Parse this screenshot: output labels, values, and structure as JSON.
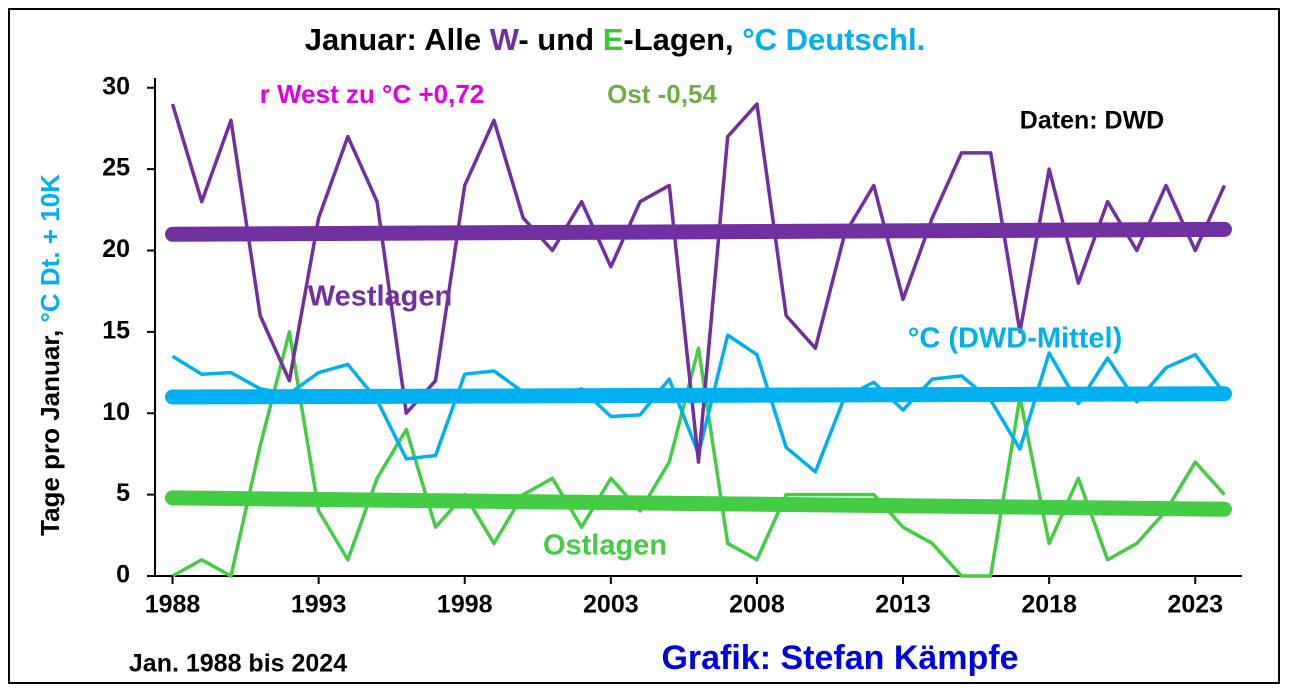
{
  "chart_data": {
    "type": "line",
    "title_parts": [
      {
        "text": "Januar: Alle ",
        "color": "#000000"
      },
      {
        "text": "W",
        "color": "#7030a0"
      },
      {
        "text": "- und ",
        "color": "#000000"
      },
      {
        "text": "E",
        "color": "#33cc33"
      },
      {
        "text": "-Lagen, ",
        "color": "#000000"
      },
      {
        "text": "°C Deutschl.",
        "color": "#00b0f0"
      }
    ],
    "ylabel_parts": [
      {
        "text": "Tage pro Januar, ",
        "color": "#000000"
      },
      {
        "text": "°C Dt. + 10K",
        "color": "#00b0f0"
      }
    ],
    "annotations": [
      {
        "text": "r West zu °C +0,72",
        "color": "#e000e0"
      },
      {
        "text": "Ost -0,54",
        "color": "#70ad47"
      },
      {
        "text": "Daten: DWD",
        "color": "#000000"
      },
      {
        "text": "Jan. 1988 bis 2024",
        "color": "#000000"
      },
      {
        "text": "Grafik: Stefan Kämpfe",
        "color": "#0000e0"
      }
    ],
    "x": [
      1988,
      1989,
      1990,
      1991,
      1992,
      1993,
      1994,
      1995,
      1996,
      1997,
      1998,
      1999,
      2000,
      2001,
      2002,
      2003,
      2004,
      2005,
      2006,
      2007,
      2008,
      2009,
      2010,
      2011,
      2012,
      2013,
      2014,
      2015,
      2016,
      2017,
      2018,
      2019,
      2020,
      2021,
      2022,
      2023,
      2024
    ],
    "series": [
      {
        "name": "Westlagen",
        "color": "#7030a0",
        "values": [
          29,
          23,
          28,
          16,
          12,
          22,
          27,
          23,
          10,
          12,
          24,
          28,
          22,
          20,
          23,
          19,
          23,
          24,
          7,
          27,
          29,
          16,
          14,
          21,
          24,
          17,
          22,
          26,
          26,
          15,
          25,
          18,
          23,
          20,
          24,
          20,
          24
        ],
        "trend": [
          21.0,
          21.3
        ]
      },
      {
        "name": "°C (DWD-Mittel)",
        "color": "#00b0f0",
        "values": [
          13.5,
          12.4,
          12.5,
          11.5,
          11.2,
          12.5,
          13.0,
          10.8,
          7.2,
          7.4,
          12.4,
          12.6,
          11.3,
          11.0,
          11.5,
          9.8,
          9.9,
          12.1,
          7.5,
          14.8,
          13.6,
          7.9,
          6.4,
          11.0,
          11.9,
          10.2,
          12.1,
          12.3,
          10.8,
          7.8,
          13.7,
          10.6,
          13.4,
          10.7,
          12.8,
          13.6,
          11.2
        ],
        "trend": [
          11.0,
          11.2
        ]
      },
      {
        "name": "Ostlagen",
        "color": "#44cc44",
        "values": [
          0,
          1,
          0,
          8,
          15,
          4,
          1,
          6,
          9,
          3,
          5,
          2,
          5,
          6,
          3,
          6,
          4,
          7,
          14,
          2,
          1,
          5,
          5,
          5,
          5,
          3,
          2,
          0,
          0,
          11,
          2,
          6,
          1,
          2,
          4,
          7,
          5
        ],
        "trend": [
          4.8,
          4.1
        ]
      }
    ],
    "xlim": [
      1987.4,
      2024.6
    ],
    "ylim": [
      0,
      30.6
    ],
    "xticks": [
      1988,
      1993,
      1998,
      2003,
      2008,
      2013,
      2018,
      2023
    ],
    "yticks": [
      0,
      5,
      10,
      15,
      20,
      25,
      30
    ]
  }
}
